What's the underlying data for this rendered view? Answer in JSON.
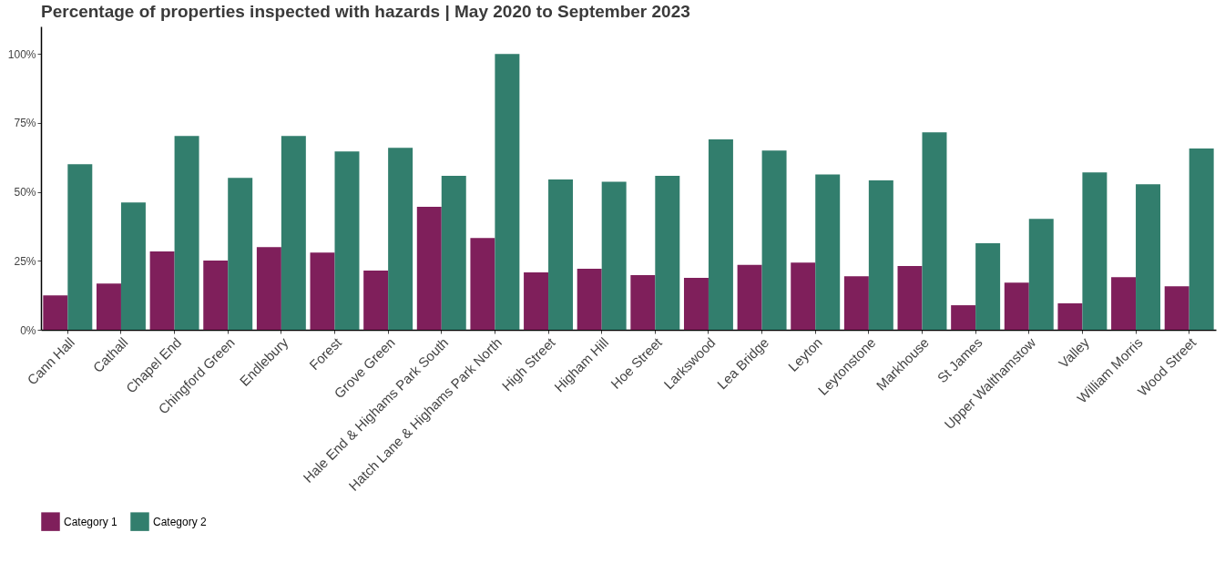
{
  "chart_data": {
    "type": "bar",
    "title": "Percentage of properties inspected with hazards | May 2020 to September 2023",
    "categories": [
      "Cann Hall",
      "Cathall",
      "Chapel End",
      "Chingford Green",
      "Endlebury",
      "Forest",
      "Grove Green",
      "Hale End & Highams Park South",
      "Hatch Lane & Highams Park North",
      "High Street",
      "Higham Hill",
      "Hoe Street",
      "Larkswood",
      "Lea Bridge",
      "Leyton",
      "Leytonstone",
      "Markhouse",
      "St James",
      "Upper Walthamstow",
      "Valley",
      "William Morris",
      "Wood Street"
    ],
    "series": [
      {
        "name": "Category 1",
        "color": "#7f1f5b",
        "values": [
          12.5,
          16.8,
          28.4,
          25.1,
          30,
          28,
          21.5,
          44.6,
          33.3,
          20.8,
          22.1,
          19.8,
          18.8,
          23.5,
          24.4,
          19.4,
          23.1,
          8.9,
          17.1,
          9.6,
          19.1,
          15.8
        ]
      },
      {
        "name": "Category 2",
        "color": "#327e6d",
        "values": [
          60,
          46.2,
          70.3,
          55.1,
          70.3,
          64.7,
          66,
          55.8,
          100,
          54.5,
          53.7,
          55.8,
          69,
          65,
          56.3,
          54.2,
          71.6,
          31.4,
          40.2,
          57.1,
          52.8,
          65.7
        ]
      }
    ],
    "ylim": [
      0,
      110
    ],
    "yticks": [
      {
        "value": 0,
        "label": "0%"
      },
      {
        "value": 25,
        "label": "25%"
      },
      {
        "value": 50,
        "label": "50%"
      },
      {
        "value": 75,
        "label": "75%"
      },
      {
        "value": 100,
        "label": "100%"
      }
    ],
    "grid": false,
    "legend": "bottom"
  }
}
